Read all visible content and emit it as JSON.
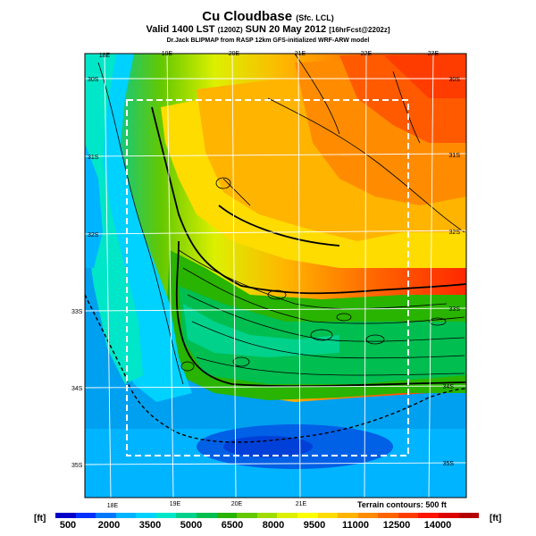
{
  "title": {
    "main": "Cu Cloudbase",
    "sub": "(Sfc. LCL)",
    "valid_prefix": "Valid 1400 LST",
    "valid_small": "(1200Z)",
    "valid_date": "SUN 20 May 2012",
    "valid_fcst": "[16hrFcst@2202z]",
    "credit": "Dr.Jack BLIPMAP from RASP 12km GFS-initialized WRF-ARW model"
  },
  "axes": {
    "top_lon": [
      "18E",
      "19E",
      "20E",
      "21E",
      "22E",
      "23E"
    ],
    "bottom_lon": [
      "18E",
      "19E",
      "20E",
      "21E"
    ],
    "right_lat": [
      "30S",
      "31S",
      "32S",
      "33S",
      "34S",
      "35S"
    ],
    "left_lat": [
      "30S",
      "31S",
      "32S",
      "33S",
      "34S",
      "35S"
    ]
  },
  "terrain_note": "Terrain contours: 500 ft",
  "units": {
    "left": "[ft]",
    "right": "[ft]"
  },
  "colorbar": {
    "labels": [
      "500",
      "2000",
      "3500",
      "5000",
      "6500",
      "8000",
      "9500",
      "11000",
      "12500",
      "14000"
    ],
    "colors": [
      "#0000c8",
      "#0030ff",
      "#0078ff",
      "#00b4ff",
      "#00d2ff",
      "#00e6c8",
      "#00d28c",
      "#00be50",
      "#28b400",
      "#64c800",
      "#a0dc00",
      "#dcf000",
      "#ffff00",
      "#ffdc00",
      "#ffb400",
      "#ff8c00",
      "#ff6400",
      "#ff3c00",
      "#ff1400",
      "#dc0000",
      "#b40000"
    ]
  }
}
